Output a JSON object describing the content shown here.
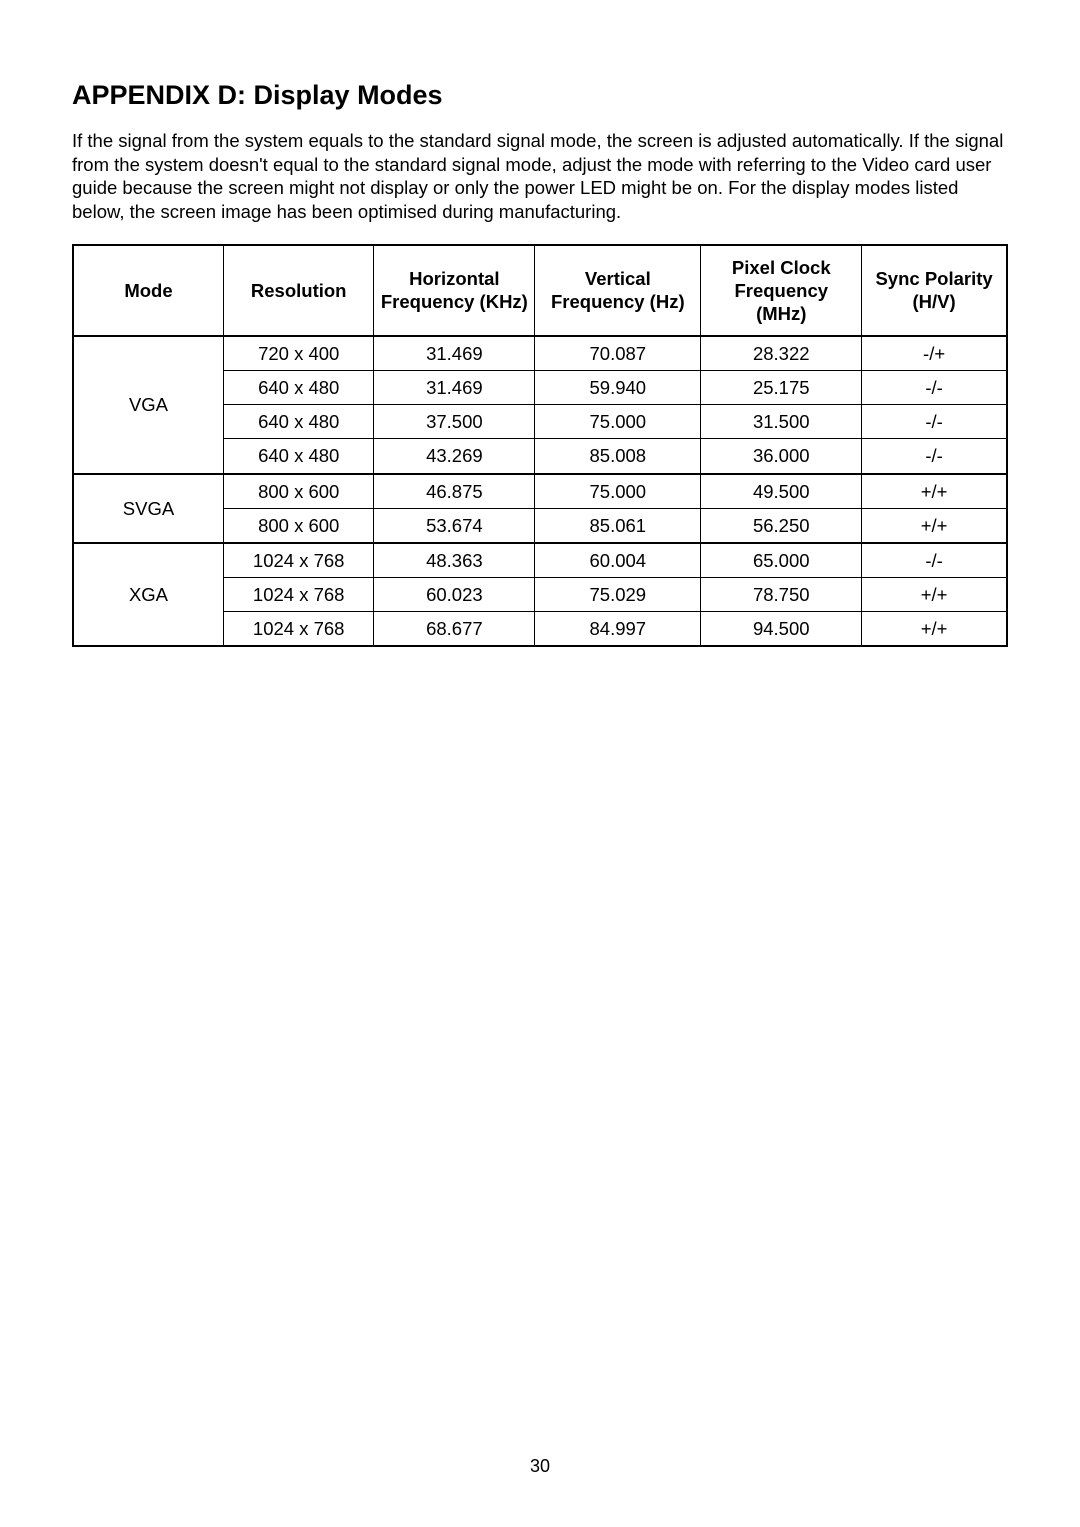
{
  "title": "APPENDIX D: Display Modes",
  "paragraph": "If the signal from the system equals to the standard signal mode, the screen is adjusted automatically. If the signal from the system doesn't equal to the standard signal mode, adjust the mode with referring to the Video card user guide because the screen might not display or only the power LED might be on. For the display modes listed below, the screen image has been optimised during manufacturing.",
  "page_number": "30",
  "headers": {
    "mode": "Mode",
    "resolution": "Resolution",
    "hfreq": "Horizontal Frequency (KHz)",
    "vfreq": "Vertical Frequency (Hz)",
    "pclock": "Pixel Clock Frequency (MHz)",
    "sync": "Sync Polarity (H/V)"
  },
  "modes": [
    {
      "label": "VGA",
      "rows": [
        {
          "resolution": "720 x 400",
          "hfreq": "31.469",
          "vfreq": "70.087",
          "pclock": "28.322",
          "sync": "-/+"
        },
        {
          "resolution": "640 x 480",
          "hfreq": "31.469",
          "vfreq": "59.940",
          "pclock": "25.175",
          "sync": "-/-"
        },
        {
          "resolution": "640 x 480",
          "hfreq": "37.500",
          "vfreq": "75.000",
          "pclock": "31.500",
          "sync": "-/-"
        },
        {
          "resolution": "640 x 480",
          "hfreq": "43.269",
          "vfreq": "85.008",
          "pclock": "36.000",
          "sync": "-/-"
        }
      ]
    },
    {
      "label": "SVGA",
      "rows": [
        {
          "resolution": "800 x 600",
          "hfreq": "46.875",
          "vfreq": "75.000",
          "pclock": "49.500",
          "sync": "+/+"
        },
        {
          "resolution": "800 x 600",
          "hfreq": "53.674",
          "vfreq": "85.061",
          "pclock": "56.250",
          "sync": "+/+"
        }
      ]
    },
    {
      "label": "XGA",
      "rows": [
        {
          "resolution": "1024 x 768",
          "hfreq": "48.363",
          "vfreq": "60.004",
          "pclock": "65.000",
          "sync": "-/-"
        },
        {
          "resolution": "1024 x 768",
          "hfreq": "60.023",
          "vfreq": "75.029",
          "pclock": "78.750",
          "sync": "+/+"
        },
        {
          "resolution": "1024 x 768",
          "hfreq": "68.677",
          "vfreq": "84.997",
          "pclock": "94.500",
          "sync": "+/+"
        }
      ]
    }
  ]
}
